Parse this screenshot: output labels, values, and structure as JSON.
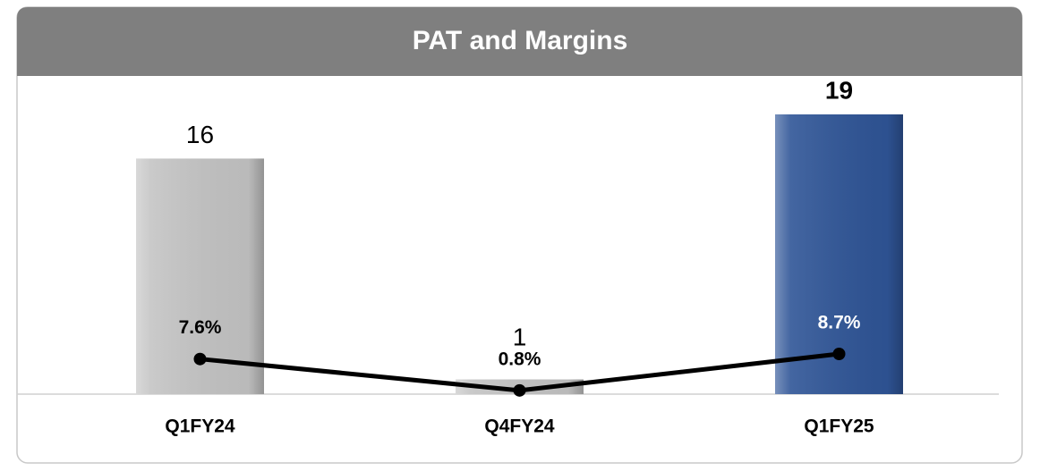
{
  "chart_data": {
    "type": "bar",
    "title": "PAT and Margins",
    "categories": [
      "Q1FY24",
      "Q4FY24",
      "Q1FY25"
    ],
    "series": [
      {
        "name": "PAT",
        "type": "bar",
        "values": [
          16,
          1,
          19
        ],
        "colors": [
          "#c4c4c4",
          "#c4c4c4",
          "#2f5597"
        ],
        "label_bold": [
          false,
          false,
          true
        ]
      },
      {
        "name": "Margins",
        "type": "line",
        "axis": "y2",
        "color": "#000000",
        "values": [
          7.6,
          0.8,
          8.7
        ],
        "value_labels": [
          "7.6%",
          "0.8%",
          "8.7%"
        ],
        "label_colors": [
          "#000000",
          "#000000",
          "#ffffff"
        ]
      }
    ]
  }
}
